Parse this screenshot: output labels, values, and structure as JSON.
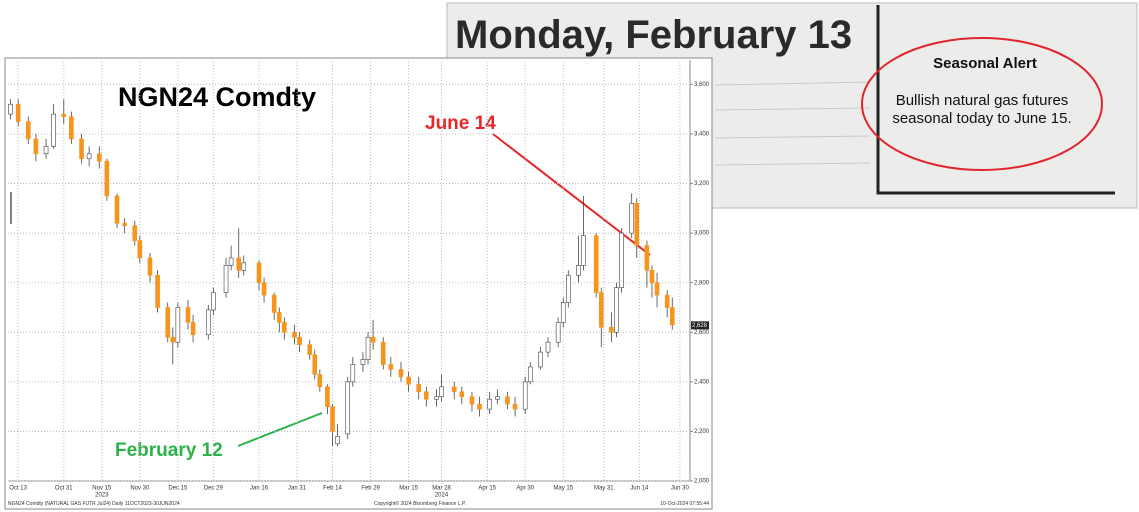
{
  "chart_data": {
    "type": "candlestick",
    "title": "NGN24 Comdty",
    "x": [
      "2023-10-10",
      "2023-10-13",
      "2023-10-17",
      "2023-10-20",
      "2023-10-24",
      "2023-10-27",
      "2023-10-31",
      "2023-11-03",
      "2023-11-07",
      "2023-11-10",
      "2023-11-14",
      "2023-11-17",
      "2023-11-21",
      "2023-11-24",
      "2023-11-28",
      "2023-11-30",
      "2023-12-04",
      "2023-12-07",
      "2023-12-11",
      "2023-12-13",
      "2023-12-15",
      "2023-12-19",
      "2023-12-21",
      "2023-12-27",
      "2023-12-29",
      "2024-01-03",
      "2024-01-05",
      "2024-01-08",
      "2024-01-10",
      "2024-01-16",
      "2024-01-18",
      "2024-01-22",
      "2024-01-24",
      "2024-01-26",
      "2024-01-30",
      "2024-02-01",
      "2024-02-05",
      "2024-02-07",
      "2024-02-09",
      "2024-02-12",
      "2024-02-14",
      "2024-02-16",
      "2024-02-20",
      "2024-02-22",
      "2024-02-26",
      "2024-02-28",
      "2024-03-01",
      "2024-03-05",
      "2024-03-08",
      "2024-03-12",
      "2024-03-15",
      "2024-03-19",
      "2024-03-22",
      "2024-03-26",
      "2024-03-28",
      "2024-04-02",
      "2024-04-05",
      "2024-04-09",
      "2024-04-12",
      "2024-04-16",
      "2024-04-19",
      "2024-04-23",
      "2024-04-26",
      "2024-04-30",
      "2024-05-02",
      "2024-05-06",
      "2024-05-09",
      "2024-05-13",
      "2024-05-15",
      "2024-05-17",
      "2024-05-21",
      "2024-05-23",
      "2024-05-28",
      "2024-05-30",
      "2024-06-03",
      "2024-06-05",
      "2024-06-07",
      "2024-06-11",
      "2024-06-13",
      "2024-06-17",
      "2024-06-19",
      "2024-06-21",
      "2024-06-25",
      "2024-06-27"
    ],
    "open": [
      3480,
      3520,
      3450,
      3380,
      3320,
      3350,
      3480,
      3470,
      3380,
      3300,
      3320,
      3290,
      3150,
      3040,
      3030,
      2970,
      2900,
      2830,
      2700,
      2580,
      2560,
      2700,
      2640,
      2590,
      2690,
      2760,
      2870,
      2900,
      2850,
      2880,
      2800,
      2750,
      2680,
      2640,
      2600,
      2580,
      2550,
      2510,
      2430,
      2380,
      2300,
      2150,
      2190,
      2400,
      2470,
      2490,
      2580,
      2560,
      2470,
      2450,
      2420,
      2390,
      2360,
      2330,
      2340,
      2380,
      2360,
      2340,
      2310,
      2290,
      2330,
      2340,
      2310,
      2290,
      2400,
      2460,
      2520,
      2560,
      2640,
      2720,
      2830,
      2870,
      2990,
      2760,
      2620,
      2600,
      2780,
      3000,
      3120,
      2950,
      2850,
      2800,
      2750,
      2700
    ],
    "high": [
      3540,
      3540,
      3470,
      3400,
      3380,
      3520,
      3540,
      3490,
      3400,
      3350,
      3350,
      3300,
      3160,
      3060,
      3050,
      2990,
      2920,
      2850,
      2720,
      2620,
      2720,
      2730,
      2670,
      2710,
      2780,
      2900,
      2950,
      3020,
      2910,
      2890,
      2820,
      2760,
      2700,
      2660,
      2630,
      2600,
      2570,
      2530,
      2450,
      2390,
      2310,
      2230,
      2420,
      2500,
      2520,
      2600,
      2650,
      2580,
      2500,
      2480,
      2440,
      2420,
      2380,
      2370,
      2430,
      2400,
      2380,
      2360,
      2340,
      2360,
      2370,
      2360,
      2340,
      2420,
      2480,
      2540,
      2580,
      2660,
      2740,
      2850,
      2990,
      3150,
      3000,
      2780,
      2680,
      2800,
      3020,
      3160,
      3140,
      2970,
      2870,
      2840,
      2770,
      2740
    ],
    "low": [
      3460,
      3430,
      3360,
      3290,
      3300,
      3340,
      3440,
      3360,
      3280,
      3270,
      3260,
      3130,
      3020,
      3000,
      2950,
      2880,
      2800,
      2680,
      2560,
      2470,
      2540,
      2610,
      2560,
      2570,
      2670,
      2740,
      2850,
      2820,
      2830,
      2770,
      2720,
      2650,
      2600,
      2570,
      2550,
      2520,
      2490,
      2410,
      2360,
      2270,
      2140,
      2140,
      2170,
      2380,
      2440,
      2470,
      2530,
      2450,
      2420,
      2400,
      2360,
      2330,
      2300,
      2300,
      2320,
      2330,
      2310,
      2280,
      2260,
      2270,
      2310,
      2290,
      2260,
      2270,
      2390,
      2450,
      2500,
      2540,
      2620,
      2700,
      2800,
      2850,
      2740,
      2540,
      2560,
      2580,
      2760,
      2980,
      2900,
      2780,
      2740,
      2700,
      2660,
      2610
    ],
    "close": [
      3520,
      3450,
      3380,
      3320,
      3350,
      3480,
      3470,
      3380,
      3300,
      3320,
      3290,
      3150,
      3040,
      3030,
      2970,
      2900,
      2830,
      2700,
      2580,
      2560,
      2700,
      2640,
      2590,
      2690,
      2760,
      2870,
      2900,
      2850,
      2880,
      2800,
      2750,
      2680,
      2640,
      2600,
      2580,
      2550,
      2510,
      2430,
      2380,
      2300,
      2200,
      2180,
      2400,
      2470,
      2490,
      2580,
      2560,
      2470,
      2450,
      2420,
      2390,
      2360,
      2330,
      2340,
      2380,
      2360,
      2340,
      2310,
      2290,
      2330,
      2340,
      2310,
      2290,
      2400,
      2460,
      2520,
      2560,
      2640,
      2720,
      2830,
      2870,
      2990,
      2760,
      2620,
      2600,
      2780,
      3000,
      3120,
      2950,
      2850,
      2800,
      2750,
      2700,
      2630
    ],
    "up_color": "#ffffff",
    "down_color": "#f7941d",
    "xlim": [
      "2023-10-09",
      "2024-07-04"
    ],
    "xticks": [
      {
        "value": "2023-10-13",
        "label": "Oct 13"
      },
      {
        "value": "2023-10-31",
        "label": "Oct 31"
      },
      {
        "value": "2023-11-15",
        "label": "Nov 15"
      },
      {
        "value": "2023-11-30",
        "label": "Nov 30"
      },
      {
        "value": "2023-12-15",
        "label": "Dec 15"
      },
      {
        "value": "2023-12-29",
        "label": "Dec 29"
      },
      {
        "value": "2024-01-16",
        "label": "Jan 16"
      },
      {
        "value": "2024-01-31",
        "label": "Jan 31"
      },
      {
        "value": "2024-02-14",
        "label": "Feb 14"
      },
      {
        "value": "2024-02-29",
        "label": "Feb 29"
      },
      {
        "value": "2024-03-15",
        "label": "Mar 15"
      },
      {
        "value": "2024-03-28",
        "label": "Mar 28"
      },
      {
        "value": "2024-04-15",
        "label": "Apr 15"
      },
      {
        "value": "2024-04-30",
        "label": "Apr 30"
      },
      {
        "value": "2024-05-15",
        "label": "May 15"
      },
      {
        "value": "2024-05-31",
        "label": "May 31"
      },
      {
        "value": "2024-06-14",
        "label": "Jun 14"
      },
      {
        "value": "2024-06-30",
        "label": "Jun 30"
      }
    ],
    "year_labels": [
      {
        "value": "2023-11-15",
        "label": "2023"
      },
      {
        "value": "2024-03-28",
        "label": "2024"
      }
    ],
    "ylim": [
      2000,
      3650
    ],
    "yticks": [
      {
        "value": 2000,
        "label": "2,000"
      },
      {
        "value": 2200,
        "label": "2,200"
      },
      {
        "value": 2400,
        "label": "2,400"
      },
      {
        "value": 2600,
        "label": "2,600"
      },
      {
        "value": 2800,
        "label": "2,800"
      },
      {
        "value": 3000,
        "label": "3,000"
      },
      {
        "value": 3200,
        "label": "3,200"
      },
      {
        "value": 3400,
        "label": "3,400"
      },
      {
        "value": 3600,
        "label": "3,600"
      }
    ],
    "grid": true,
    "last_price": {
      "value": 2628,
      "label": "2,628"
    },
    "annotations": [
      {
        "text": "June 14",
        "color": "#e8262a"
      },
      {
        "text": "February 12",
        "color": "#2bb34a"
      }
    ],
    "footer": {
      "left": "NGN24 Comdty (NATURAL GAS FUTR Jul24) Daily 11OCT2023-30JUN2024",
      "center": "Copyright© 2024 Bloomberg Finance L.P.",
      "right": "10-Oct-2024 07:55:44"
    }
  },
  "clipping": {
    "heading": "Monday, February 13",
    "box_title": "Seasonal Alert",
    "box_text": "Bullish natural gas futures seasonal today to June 15."
  }
}
